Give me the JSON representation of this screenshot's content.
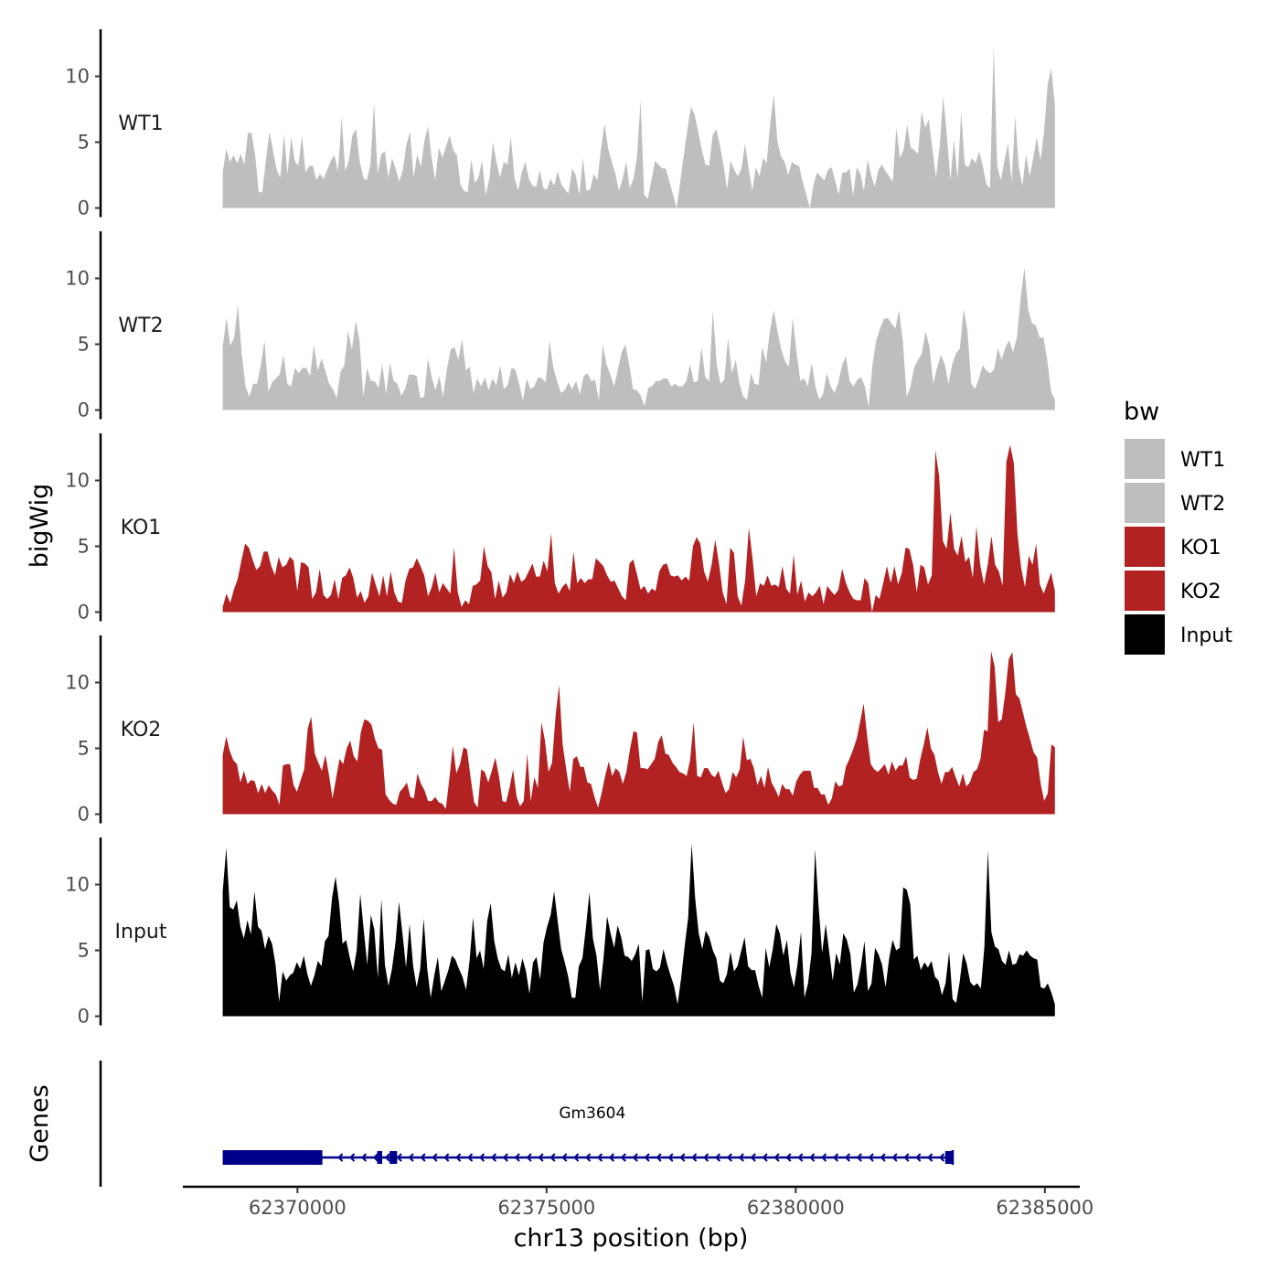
{
  "chart_data": {
    "type": "area",
    "title": "",
    "ylabel": "bigWig",
    "xlabel": "chr13 position (bp)",
    "xlim": [
      62367700,
      62385700
    ],
    "ylim": [
      0,
      13.5
    ],
    "y_ticks": [
      0,
      5,
      10
    ],
    "x_ticks": [
      62370000,
      62375000,
      62380000,
      62385000
    ],
    "x_tick_labels": [
      "62370000",
      "62375000",
      "62380000",
      "62385000"
    ],
    "genome_start": 62368500,
    "genome_end": 62385200,
    "legend": {
      "title": "bw",
      "placement": "right",
      "entries": [
        {
          "label": "WT1",
          "color": "#bebebe"
        },
        {
          "label": "WT2",
          "color": "#bebebe"
        },
        {
          "label": "KO1",
          "color": "#b22222"
        },
        {
          "label": "KO2",
          "color": "#b22222"
        },
        {
          "label": "Input",
          "color": "#000000"
        }
      ]
    },
    "series": [
      {
        "name": "WT1",
        "color": "#bebebe",
        "values": [
          2.7,
          4.5,
          3.5,
          4.0,
          3.4,
          4.1,
          3.3,
          5.7,
          5.7,
          4.0,
          1.2,
          1.2,
          3.7,
          5.8,
          4.3,
          2.9,
          2.3,
          5.6,
          2.6,
          5.4,
          3.6,
          3.2,
          5.5,
          2.7,
          3.2,
          3.2,
          2.1,
          2.6,
          2.2,
          2.9,
          3.6,
          4.0,
          2.8,
          6.9,
          2.8,
          3.6,
          5.5,
          6.0,
          3.6,
          2.3,
          2.1,
          3.3,
          8.0,
          2.6,
          4.1,
          4.3,
          2.3,
          3.8,
          3.0,
          2.0,
          2.9,
          4.8,
          5.8,
          2.3,
          4.1,
          3.1,
          5.1,
          6.2,
          3.8,
          2.1,
          4.6,
          3.8,
          4.7,
          5.5,
          4.4,
          4.0,
          1.8,
          1.3,
          1.2,
          3.7,
          1.9,
          2.3,
          3.6,
          1.0,
          2.2,
          5.0,
          3.5,
          2.3,
          3.5,
          3.3,
          5.4,
          2.3,
          1.3,
          2.7,
          3.5,
          2.2,
          1.7,
          1.6,
          2.9,
          1.5,
          1.4,
          2.2,
          1.7,
          2.8,
          1.8,
          1.4,
          1.1,
          3.0,
          2.5,
          1.0,
          3.8,
          1.3,
          1.4,
          2.6,
          2.1,
          4.5,
          6.4,
          4.5,
          3.5,
          2.6,
          1.3,
          2.2,
          3.5,
          1.5,
          2.2,
          3.9,
          8.2,
          1.0,
          0.7,
          2.1,
          3.6,
          3.3,
          3.0,
          3.0,
          2.0,
          1.0,
          0.0,
          2.0,
          4.0,
          6.0,
          7.7,
          7.1,
          5.8,
          4.4,
          3.3,
          3.2,
          5.5,
          6.0,
          4.8,
          3.3,
          1.4,
          3.6,
          2.9,
          2.4,
          3.0,
          4.9,
          3.0,
          1.3,
          3.1,
          2.4,
          3.8,
          3.4,
          6.5,
          8.6,
          5.0,
          3.9,
          3.5,
          2.5,
          3.5,
          3.3,
          3.2,
          2.0,
          1.0,
          0.0,
          1.8,
          2.7,
          2.4,
          2.1,
          2.9,
          3.1,
          2.1,
          1.0,
          2.7,
          2.7,
          3.0,
          0.9,
          3.1,
          2.6,
          1.3,
          3.7,
          2.5,
          1.6,
          2.9,
          3.3,
          2.8,
          2.4,
          2.0,
          6.1,
          3.8,
          4.4,
          6.3,
          4.6,
          4.4,
          4.1,
          7.3,
          6.1,
          6.7,
          4.5,
          2.3,
          4.6,
          8.5,
          5.6,
          2.1,
          5.2,
          2.2,
          7.3,
          3.3,
          3.1,
          3.8,
          3.4,
          4.3,
          3.2,
          1.8,
          1.5,
          12.3,
          3.2,
          2.1,
          3.6,
          4.9,
          2.0,
          7.0,
          3.1,
          1.7,
          4.1,
          2.4,
          3.8,
          5.4,
          3.6,
          5.8,
          9.4,
          10.6,
          7.8
        ]
      },
      {
        "name": "WT2",
        "color": "#bebebe",
        "values": [
          4.8,
          7.0,
          4.9,
          5.5,
          8.0,
          4.3,
          1.8,
          1.0,
          2.0,
          2.0,
          3.4,
          5.3,
          1.4,
          2.1,
          2.4,
          2.7,
          4.2,
          2.0,
          1.8,
          3.2,
          2.8,
          3.2,
          3.2,
          2.6,
          5.0,
          3.0,
          3.9,
          3.0,
          2.0,
          1.6,
          0.9,
          2.9,
          3.4,
          6.0,
          4.6,
          6.8,
          5.3,
          1.0,
          3.2,
          2.2,
          2.2,
          1.7,
          3.5,
          1.2,
          3.6,
          2.2,
          2.0,
          1.1,
          1.6,
          2.7,
          2.7,
          2.6,
          0.9,
          1.0,
          3.9,
          2.5,
          1.5,
          2.6,
          1.0,
          3.1,
          4.6,
          4.8,
          3.8,
          5.4,
          3.0,
          3.3,
          1.3,
          2.4,
          1.8,
          2.5,
          1.5,
          2.4,
          1.9,
          3.4,
          1.6,
          1.9,
          3.2,
          3.1,
          2.0,
          0.7,
          2.4,
          1.6,
          1.8,
          2.5,
          2.4,
          2.1,
          5.3,
          3.2,
          2.2,
          1.3,
          1.5,
          2.1,
          1.6,
          2.2,
          1.2,
          2.6,
          2.8,
          2.2,
          2.3,
          0.7,
          5.0,
          3.5,
          2.7,
          1.8,
          3.1,
          4.4,
          5.0,
          3.4,
          1.6,
          1.5,
          1.1,
          0.3,
          1.7,
          1.8,
          2.2,
          2.2,
          2.4,
          2.4,
          1.8,
          2.0,
          1.8,
          1.8,
          2.2,
          3.5,
          2.1,
          2.2,
          4.8,
          2.5,
          2.2,
          7.6,
          3.5,
          2.0,
          2.3,
          5.5,
          2.8,
          3.8,
          2.0,
          1.0,
          0.8,
          2.8,
          2.0,
          1.9,
          4.8,
          3.6,
          6.0,
          7.6,
          6.0,
          4.6,
          3.7,
          3.3,
          7.0,
          4.5,
          2.2,
          2.4,
          1.8,
          3.6,
          1.8,
          0.8,
          1.2,
          2.8,
          1.8,
          1.3,
          2.1,
          3.4,
          4.1,
          2.2,
          1.8,
          2.3,
          2.5,
          1.8,
          0.2,
          3.5,
          5.3,
          6.2,
          6.9,
          7.0,
          6.6,
          6.2,
          7.6,
          5.2,
          1.0,
          1.8,
          3.3,
          3.8,
          4.3,
          6.0,
          4.8,
          2.0,
          3.2,
          4.2,
          3.5,
          2.0,
          3.5,
          4.3,
          4.7,
          7.7,
          6.0,
          2.0,
          1.6,
          2.4,
          3.4,
          3.0,
          2.8,
          3.1,
          4.7,
          3.8,
          4.8,
          5.3,
          4.4,
          5.5,
          8.5,
          10.8,
          7.6,
          6.6,
          6.4,
          5.5,
          5.5,
          3.8,
          1.4,
          0.8
        ]
      },
      {
        "name": "KO1",
        "color": "#b22222",
        "values": [
          0.4,
          1.4,
          0.7,
          1.7,
          2.5,
          3.9,
          5.2,
          4.9,
          4.0,
          3.2,
          3.5,
          4.6,
          4.6,
          3.5,
          2.8,
          4.2,
          3.4,
          3.6,
          4.2,
          3.9,
          1.6,
          3.8,
          3.7,
          3.4,
          1.0,
          1.5,
          3.3,
          1.3,
          1.0,
          1.3,
          2.5,
          1.0,
          2.6,
          2.8,
          3.4,
          2.6,
          1.1,
          1.6,
          0.7,
          1.2,
          3.0,
          2.1,
          1.2,
          2.8,
          1.2,
          3.1,
          1.5,
          0.8,
          0.7,
          2.4,
          3.3,
          3.4,
          4.1,
          3.5,
          2.8,
          1.2,
          1.9,
          3.0,
          1.5,
          2.2,
          1.8,
          1.4,
          4.9,
          1.5,
          0.4,
          0.9,
          0.6,
          2.0,
          2.1,
          2.4,
          5.0,
          3.5,
          3.0,
          1.0,
          2.4,
          1.1,
          1.5,
          2.9,
          2.2,
          3.1,
          2.3,
          2.5,
          3.1,
          3.7,
          2.7,
          2.7,
          3.9,
          3.1,
          6.0,
          2.2,
          1.4,
          1.9,
          2.2,
          1.6,
          4.6,
          2.2,
          2.6,
          2.2,
          2.5,
          2.5,
          4.1,
          3.8,
          3.5,
          2.8,
          2.3,
          2.4,
          1.8,
          1.2,
          0.9,
          3.7,
          4.0,
          2.9,
          1.7,
          2.0,
          1.4,
          1.8,
          1.6,
          3.1,
          3.6,
          3.7,
          2.8,
          2.7,
          2.8,
          2.4,
          2.7,
          2.4,
          5.0,
          5.7,
          5.2,
          3.1,
          2.3,
          3.6,
          5.5,
          3.7,
          1.5,
          0.6,
          4.9,
          4.5,
          1.2,
          0.5,
          2.4,
          6.4,
          4.0,
          1.2,
          2.2,
          2.0,
          2.8,
          2.0,
          2.1,
          1.9,
          3.5,
          1.8,
          1.4,
          4.4,
          1.3,
          2.4,
          0.8,
          1.5,
          1.2,
          1.5,
          2.0,
          0.6,
          2.0,
          1.6,
          1.3,
          1.7,
          3.3,
          2.2,
          1.5,
          1.0,
          0.9,
          0.9,
          2.6,
          2.2,
          0.0,
          1.3,
          1.0,
          2.2,
          3.5,
          2.2,
          3.5,
          2.1,
          3.0,
          4.9,
          4.8,
          3.6,
          1.5,
          3.6,
          3.4,
          2.1,
          2.8,
          12.3,
          10.3,
          5.4,
          4.8,
          7.6,
          4.8,
          4.3,
          5.8,
          3.8,
          4.2,
          2.6,
          6.5,
          3.6,
          2.1,
          3.6,
          5.8,
          3.6,
          3.1,
          2.0,
          11.4,
          12.7,
          11.3,
          5.9,
          3.3,
          1.9,
          4.3,
          3.6,
          5.2,
          2.1,
          1.4,
          2.2,
          3.0,
          1.6
        ]
      },
      {
        "name": "KO2",
        "color": "#b22222",
        "values": [
          4.5,
          5.9,
          4.8,
          4.1,
          3.8,
          2.4,
          3.3,
          2.3,
          2.6,
          2.5,
          1.6,
          2.3,
          1.6,
          2.2,
          1.8,
          1.5,
          0.7,
          3.7,
          3.8,
          3.8,
          2.2,
          1.7,
          2.6,
          3.4,
          6.5,
          7.4,
          4.6,
          3.9,
          3.3,
          4.5,
          3.0,
          1.2,
          2.7,
          4.2,
          3.8,
          5.0,
          5.6,
          4.4,
          4.0,
          6.2,
          7.2,
          7.1,
          6.8,
          5.7,
          5.0,
          4.9,
          1.5,
          1.1,
          0.8,
          0.7,
          1.7,
          2.0,
          2.4,
          1.3,
          1.2,
          3.1,
          2.3,
          1.8,
          1.0,
          1.0,
          1.3,
          0.9,
          0.8,
          0.4,
          2.7,
          5.2,
          3.1,
          3.8,
          5.1,
          4.9,
          2.8,
          0.9,
          0.5,
          3.4,
          3.2,
          2.4,
          3.3,
          4.3,
          2.9,
          1.0,
          0.9,
          2.0,
          3.4,
          1.3,
          0.6,
          1.0,
          4.6,
          1.0,
          2.8,
          2.0,
          7.0,
          5.6,
          3.2,
          3.9,
          7.5,
          9.8,
          5.3,
          3.4,
          1.7,
          4.2,
          4.4,
          3.6,
          3.6,
          2.4,
          2.3,
          1.3,
          0.5,
          1.6,
          2.9,
          4.0,
          2.9,
          3.5,
          3.2,
          2.3,
          3.2,
          4.9,
          6.3,
          6.2,
          3.5,
          3.5,
          3.4,
          3.8,
          4.2,
          5.5,
          6.0,
          4.6,
          4.5,
          3.9,
          3.6,
          3.2,
          3.1,
          2.9,
          4.1,
          7.0,
          2.9,
          2.8,
          3.5,
          3.5,
          3.0,
          2.8,
          3.3,
          2.4,
          1.6,
          1.9,
          3.2,
          2.8,
          3.4,
          5.9,
          4.1,
          4.2,
          3.5,
          2.2,
          2.9,
          2.0,
          3.6,
          2.4,
          1.9,
          1.3,
          2.3,
          1.9,
          1.9,
          1.4,
          2.5,
          3.0,
          3.3,
          3.3,
          3.3,
          2.0,
          2.0,
          1.5,
          1.5,
          0.7,
          1.2,
          2.5,
          2.1,
          2.2,
          3.6,
          4.2,
          4.9,
          5.7,
          7.0,
          8.4,
          5.9,
          3.8,
          3.4,
          3.2,
          3.5,
          3.8,
          3.0,
          4.0,
          3.3,
          3.7,
          3.7,
          4.4,
          2.8,
          2.6,
          2.7,
          4.2,
          5.3,
          6.6,
          5.0,
          4.5,
          3.2,
          2.3,
          3.2,
          3.2,
          3.6,
          2.8,
          2.1,
          3.1,
          2.1,
          2.4,
          3.2,
          3.4,
          4.2,
          6.4,
          6.3,
          12.4,
          11.2,
          7.0,
          7.2,
          9.2,
          11.8,
          12.3,
          9.1,
          8.8,
          7.7,
          6.6,
          5.7,
          4.7,
          4.3,
          2.3,
          1.0,
          1.6,
          5.3,
          5.1
        ]
      },
      {
        "name": "Input",
        "color": "#000000",
        "values": [
          9.5,
          12.8,
          8.3,
          8.1,
          8.8,
          6.8,
          5.9,
          7.3,
          6.2,
          9.5,
          6.8,
          6.5,
          5.1,
          6.1,
          5.5,
          3.9,
          1.1,
          3.4,
          2.7,
          3.1,
          3.3,
          4.1,
          3.6,
          4.6,
          3.2,
          2.3,
          3.1,
          4.2,
          3.8,
          5.7,
          6.1,
          9.0,
          10.6,
          8.6,
          5.5,
          5.8,
          4.5,
          3.4,
          5.0,
          9.3,
          6.5,
          3.9,
          7.7,
          6.6,
          2.9,
          8.9,
          3.9,
          2.3,
          3.6,
          5.6,
          8.7,
          6.2,
          3.7,
          7.0,
          3.8,
          2.2,
          3.6,
          7.4,
          3.6,
          1.4,
          3.1,
          4.5,
          1.9,
          2.7,
          3.5,
          4.6,
          4.3,
          3.6,
          3.0,
          2.0,
          4.2,
          7.5,
          4.4,
          5.0,
          3.6,
          7.2,
          8.6,
          5.7,
          4.4,
          3.6,
          3.4,
          4.7,
          2.9,
          4.1,
          3.1,
          4.4,
          3.4,
          1.7,
          4.1,
          4.5,
          2.8,
          5.6,
          6.8,
          7.7,
          9.5,
          7.2,
          5.1,
          4.1,
          3.0,
          1.4,
          1.4,
          3.8,
          4.4,
          6.7,
          9.4,
          5.9,
          4.6,
          2.0,
          4.4,
          7.6,
          6.3,
          5.2,
          6.9,
          6.0,
          4.6,
          4.5,
          4.2,
          4.7,
          5.5,
          1.1,
          5.0,
          5.1,
          3.6,
          3.4,
          3.7,
          5.1,
          4.0,
          3.1,
          2.3,
          0.9,
          2.9,
          5.3,
          7.5,
          13.1,
          8.9,
          6.3,
          5.1,
          6.5,
          6.0,
          5.0,
          4.4,
          2.7,
          2.5,
          3.2,
          4.9,
          3.4,
          3.8,
          4.9,
          6.0,
          3.8,
          3.5,
          3.5,
          2.3,
          1.4,
          5.2,
          3.7,
          5.1,
          7.0,
          6.3,
          4.6,
          5.8,
          3.3,
          2.2,
          3.9,
          6.4,
          1.4,
          2.5,
          4.8,
          12.7,
          8.3,
          4.8,
          7.0,
          4.9,
          2.7,
          4.8,
          3.9,
          6.3,
          5.8,
          4.7,
          1.8,
          2.4,
          3.8,
          5.7,
          1.9,
          2.5,
          5.2,
          4.7,
          3.9,
          2.2,
          4.4,
          5.8,
          5.0,
          5.2,
          9.8,
          9.6,
          8.5,
          4.3,
          4.6,
          3.5,
          4.1,
          3.7,
          4.2,
          3.0,
          2.7,
          1.6,
          2.5,
          4.9,
          1.3,
          1.0,
          2.6,
          4.8,
          4.0,
          2.6,
          2.3,
          2.5,
          2.1,
          5.2,
          12.6,
          6.4,
          5.3,
          5.1,
          4.2,
          3.9,
          5.0,
          3.9,
          4.0,
          4.7,
          4.6,
          5.0,
          4.6,
          4.4,
          4.3,
          2.2,
          2.1,
          2.5,
          1.8,
          0.9
        ]
      }
    ],
    "genes": [
      {
        "name": "Gm3604",
        "strand": "-",
        "exons": [
          [
            62368500,
            62370500
          ],
          [
            62371600,
            62371700
          ],
          [
            62371850,
            62372000
          ],
          [
            62383000,
            62383150
          ]
        ],
        "start": 62368500,
        "end": 62383150
      }
    ],
    "genes_label": "Genes",
    "gene_color": "#00008b"
  }
}
